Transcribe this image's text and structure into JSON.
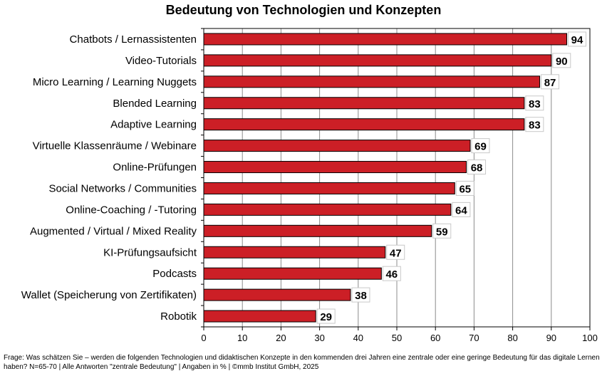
{
  "chart_data": {
    "type": "bar",
    "orientation": "horizontal",
    "title": "Bedeutung von Technologien und Konzepten",
    "categories": [
      "Chatbots / Lernassistenten",
      "Video-Tutorials",
      "Micro Learning / Learning Nuggets",
      "Blended Learning",
      "Adaptive Learning",
      "Virtuelle Klassenräume / Webinare",
      "Online-Prüfungen",
      "Social Networks / Communities",
      "Online-Coaching / -Tutoring",
      "Augmented / Virtual / Mixed Reality",
      "KI-Prüfungsaufsicht",
      "Podcasts",
      "Wallet (Speicherung von Zertifikaten)",
      "Robotik"
    ],
    "values": [
      94,
      90,
      87,
      83,
      83,
      69,
      68,
      65,
      64,
      59,
      47,
      46,
      38,
      29
    ],
    "xlim": [
      0,
      100
    ],
    "xticks": [
      0,
      10,
      20,
      30,
      40,
      50,
      60,
      70,
      80,
      90,
      100
    ],
    "xlabel": "",
    "ylabel": "",
    "grid": true,
    "bar_color": "#cc1f26",
    "bar_edge_color": "#000000",
    "legend": "none"
  },
  "footnote": "Frage: Was schätzen Sie – werden die folgenden Technologien und didaktischen Konzepte in den kommenden drei Jahren eine zentrale oder eine geringe Bedeutung für das digitale Lernen haben? N=65-70 | Alle Antworten \"zentrale Bedeutung\" | Angaben in % | ©mmb Institut GmbH, 2025"
}
